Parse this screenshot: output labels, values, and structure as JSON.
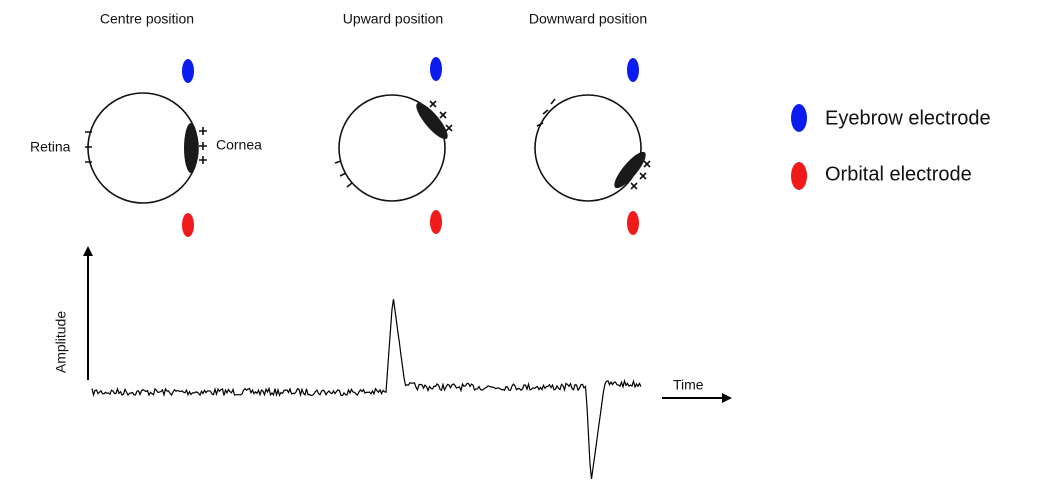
{
  "panels": [
    {
      "title": "Centre position"
    },
    {
      "title": "Upward position"
    },
    {
      "title": "Downward position"
    }
  ],
  "labels": {
    "retina": "Retina",
    "cornea": "Cornea"
  },
  "legend": [
    {
      "label": "Eyebrow electrode"
    },
    {
      "label": "Orbital electrode"
    }
  ],
  "axes": {
    "y": "Amplitude",
    "x": "Time"
  }
}
